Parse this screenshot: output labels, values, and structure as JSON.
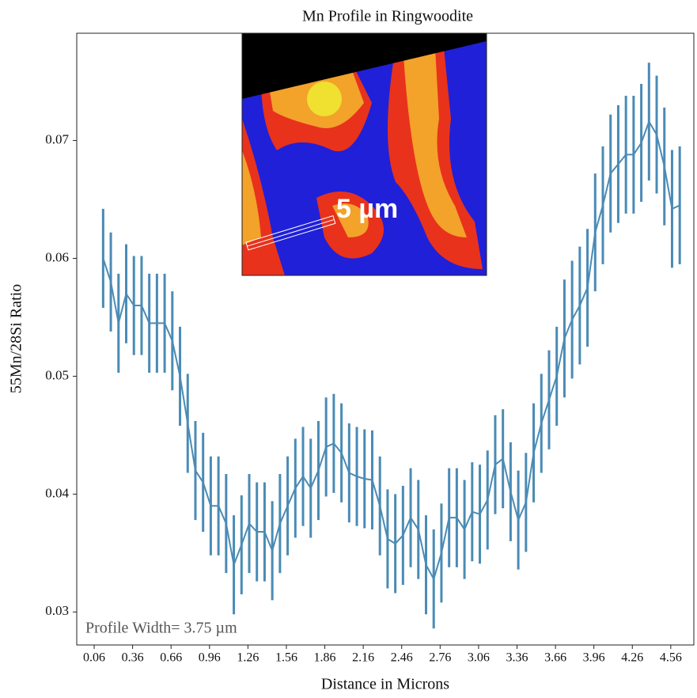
{
  "chart_data": {
    "type": "line",
    "title": "Mn Profile in Ringwoodite",
    "xlabel": "Distance in Microns",
    "ylabel": "55Mn/28Si Ratio",
    "annotation": "Profile Width= 3.75 µm",
    "inset_label": "5  µm",
    "x": [
      0.13,
      0.19,
      0.25,
      0.31,
      0.37,
      0.43,
      0.49,
      0.55,
      0.61,
      0.67,
      0.73,
      0.79,
      0.85,
      0.91,
      0.97,
      1.03,
      1.09,
      1.15,
      1.21,
      1.27,
      1.33,
      1.39,
      1.45,
      1.51,
      1.57,
      1.63,
      1.69,
      1.75,
      1.81,
      1.87,
      1.93,
      1.99,
      2.05,
      2.11,
      2.17,
      2.23,
      2.29,
      2.35,
      2.41,
      2.47,
      2.53,
      2.59,
      2.65,
      2.71,
      2.77,
      2.83,
      2.89,
      2.95,
      3.01,
      3.07,
      3.13,
      3.19,
      3.25,
      3.31,
      3.37,
      3.43,
      3.49,
      3.55,
      3.61,
      3.67,
      3.73,
      3.79,
      3.85,
      3.91,
      3.97,
      4.03,
      4.09,
      4.15,
      4.21,
      4.27,
      4.33,
      4.39,
      4.45,
      4.51,
      4.57,
      4.63
    ],
    "series": [
      {
        "color": "#4a8bb5",
        "values": [
          0.06,
          0.058,
          0.0545,
          0.057,
          0.056,
          0.056,
          0.0545,
          0.0545,
          0.0545,
          0.053,
          0.05,
          0.046,
          0.042,
          0.041,
          0.039,
          0.039,
          0.0375,
          0.034,
          0.0357,
          0.0375,
          0.0368,
          0.0368,
          0.0352,
          0.0375,
          0.039,
          0.0405,
          0.0415,
          0.0405,
          0.042,
          0.044,
          0.0443,
          0.0435,
          0.0418,
          0.0415,
          0.0413,
          0.0412,
          0.039,
          0.0362,
          0.0358,
          0.0365,
          0.038,
          0.037,
          0.034,
          0.0328,
          0.035,
          0.038,
          0.038,
          0.037,
          0.0385,
          0.0383,
          0.0395,
          0.0425,
          0.043,
          0.0402,
          0.0378,
          0.0393,
          0.0435,
          0.046,
          0.048,
          0.05,
          0.0532,
          0.0548,
          0.056,
          0.0575,
          0.0622,
          0.0645,
          0.0672,
          0.068,
          0.0688,
          0.0688,
          0.0698,
          0.0716,
          0.0705,
          0.0678,
          0.0642,
          0.0645
        ],
        "errors": [
          0.0042,
          0.0042,
          0.0042,
          0.0042,
          0.0042,
          0.0042,
          0.0042,
          0.0042,
          0.0042,
          0.0042,
          0.0042,
          0.0042,
          0.0042,
          0.0042,
          0.0042,
          0.0042,
          0.0042,
          0.0042,
          0.0042,
          0.0042,
          0.0042,
          0.0042,
          0.0042,
          0.0042,
          0.0042,
          0.0042,
          0.0042,
          0.0042,
          0.0042,
          0.0042,
          0.0042,
          0.0042,
          0.0042,
          0.0042,
          0.0042,
          0.0042,
          0.0042,
          0.0042,
          0.0042,
          0.0042,
          0.0042,
          0.0042,
          0.0042,
          0.0042,
          0.0042,
          0.0042,
          0.0042,
          0.0042,
          0.0042,
          0.0042,
          0.0042,
          0.0042,
          0.0042,
          0.0042,
          0.0042,
          0.0042,
          0.0042,
          0.0042,
          0.0042,
          0.0042,
          0.005,
          0.005,
          0.005,
          0.005,
          0.005,
          0.005,
          0.005,
          0.005,
          0.005,
          0.005,
          0.005,
          0.005,
          0.005,
          0.005,
          0.005,
          0.005
        ]
      }
    ],
    "xlim": [
      -0.076,
      4.74
    ],
    "ylim": [
      0.0272,
      0.0791
    ],
    "xticks": [
      0.06,
      0.36,
      0.66,
      0.96,
      1.26,
      1.56,
      1.86,
      2.16,
      2.46,
      2.76,
      3.06,
      3.36,
      3.66,
      3.96,
      4.26,
      4.56
    ],
    "yticks": [
      0.03,
      0.04,
      0.05,
      0.06,
      0.07
    ]
  }
}
